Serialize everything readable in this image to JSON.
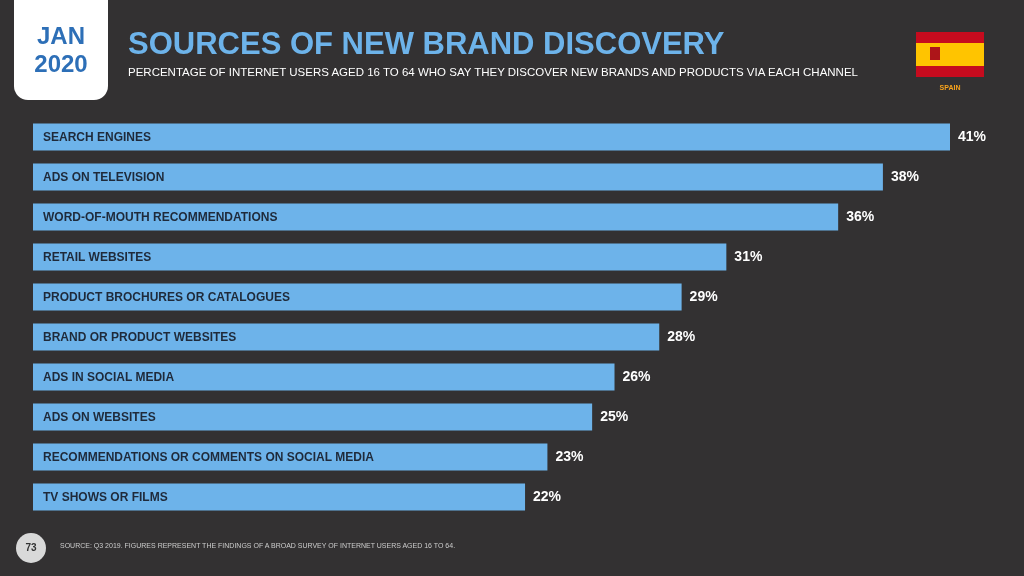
{
  "chart_data": {
    "type": "bar",
    "orientation": "horizontal",
    "title": "SOURCES OF NEW BRAND DISCOVERY",
    "subtitle": "PERCENTAGE OF INTERNET USERS AGED 16 TO 64 WHO SAY THEY DISCOVER NEW BRANDS AND PRODUCTS VIA EACH CHANNEL",
    "categories": [
      "SEARCH ENGINES",
      "ADS ON TELEVISION",
      "WORD-OF-MOUTH RECOMMENDATIONS",
      "RETAIL WEBSITES",
      "PRODUCT BROCHURES OR CATALOGUES",
      "BRAND OR PRODUCT WEBSITES",
      "ADS IN SOCIAL MEDIA",
      "ADS ON WEBSITES",
      "RECOMMENDATIONS OR COMMENTS ON SOCIAL MEDIA",
      "TV SHOWS OR FILMS"
    ],
    "values": [
      41,
      38,
      36,
      31,
      29,
      28,
      26,
      25,
      23,
      22
    ],
    "value_labels": [
      "41%",
      "38%",
      "36%",
      "31%",
      "29%",
      "28%",
      "26%",
      "25%",
      "23%",
      "22%"
    ],
    "color": "#6db3ea",
    "annotations": [
      "JAN 2020",
      "SPAIN",
      "73",
      "SOURCE: Q3 2019. FIGURES REPRESENT THE FINDINGS OF A BROAD SURVEY OF INTERNET USERS AGED 16 TO 64."
    ]
  }
}
